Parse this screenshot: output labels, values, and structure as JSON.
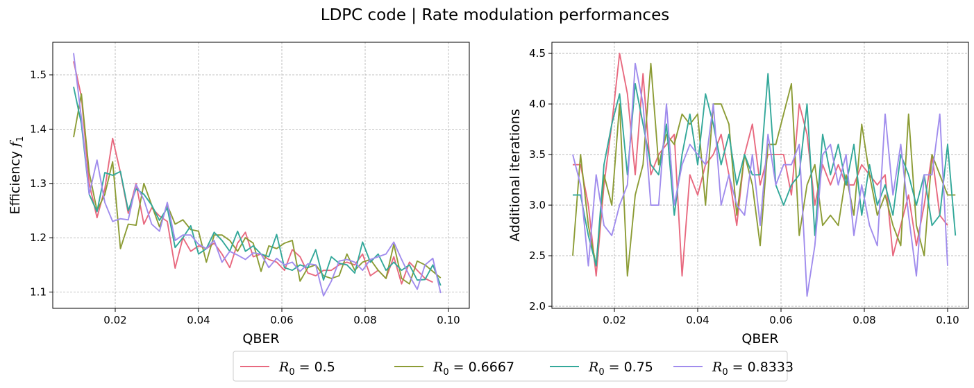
{
  "figure": {
    "title": "LDPC code | Rate modulation performances"
  },
  "legend": {
    "placement": "bottom-center",
    "entries": [
      {
        "prefix": "R",
        "sub": "0",
        "value": " = 0.5",
        "color": "#e8697f"
      },
      {
        "prefix": "R",
        "sub": "0",
        "value": " = 0.6667",
        "color": "#8c9c35"
      },
      {
        "prefix": "R",
        "sub": "0",
        "value": " = 0.75",
        "color": "#33a89a"
      },
      {
        "prefix": "R",
        "sub": "0",
        "value": " = 0.8333",
        "color": "#a08ced"
      }
    ]
  },
  "chart_data": [
    {
      "type": "line",
      "xlabel": "QBER",
      "ylabel_text": "Efficiency ",
      "ylabel_math": "f",
      "ylabel_sub": "1",
      "xlim": [
        0.005,
        0.105
      ],
      "ylim": [
        1.07,
        1.56
      ],
      "xticks": [
        0.02,
        0.04,
        0.06,
        0.08,
        0.1
      ],
      "xtick_labels": [
        "0.02",
        "0.04",
        "0.06",
        "0.08",
        "0.10"
      ],
      "yticks": [
        1.1,
        1.2,
        1.3,
        1.4,
        1.5
      ],
      "ytick_labels": [
        "1.1",
        "1.2",
        "1.3",
        "1.4",
        "1.5"
      ],
      "grid": true,
      "x_start": 0.01,
      "x_step": 0.001875,
      "series": [
        {
          "name": "R0 = 0.5",
          "color": "#e8697f",
          "values": [
            1.525,
            1.46,
            1.3,
            1.237,
            1.29,
            1.383,
            1.32,
            1.245,
            1.3,
            1.225,
            1.255,
            1.24,
            1.23,
            1.144,
            1.2,
            1.175,
            1.185,
            1.18,
            1.19,
            1.17,
            1.145,
            1.19,
            1.21,
            1.165,
            1.17,
            1.16,
            1.155,
            1.14,
            1.178,
            1.165,
            1.135,
            1.13,
            1.14,
            1.14,
            1.15,
            1.155,
            1.15,
            1.17,
            1.13,
            1.14,
            1.125,
            1.165,
            1.115,
            1.155,
            1.14,
            1.125,
            1.118
          ]
        },
        {
          "name": "R0 = 0.6667",
          "color": "#8c9c35",
          "values": [
            1.385,
            1.465,
            1.32,
            1.25,
            1.28,
            1.34,
            1.18,
            1.225,
            1.223,
            1.3,
            1.26,
            1.22,
            1.26,
            1.225,
            1.233,
            1.215,
            1.212,
            1.155,
            1.205,
            1.205,
            1.195,
            1.175,
            1.2,
            1.19,
            1.138,
            1.185,
            1.18,
            1.19,
            1.195,
            1.12,
            1.145,
            1.15,
            1.13,
            1.125,
            1.13,
            1.17,
            1.14,
            1.155,
            1.16,
            1.14,
            1.125,
            1.188,
            1.125,
            1.115,
            1.157,
            1.15,
            1.138,
            1.126
          ]
        },
        {
          "name": "R0 = 0.75",
          "color": "#33a89a",
          "values": [
            1.478,
            1.41,
            1.28,
            1.248,
            1.32,
            1.315,
            1.322,
            1.25,
            1.29,
            1.28,
            1.26,
            1.232,
            1.255,
            1.182,
            1.2,
            1.222,
            1.17,
            1.18,
            1.21,
            1.195,
            1.175,
            1.212,
            1.175,
            1.185,
            1.17,
            1.165,
            1.206,
            1.145,
            1.14,
            1.15,
            1.145,
            1.178,
            1.122,
            1.165,
            1.153,
            1.15,
            1.135,
            1.192,
            1.155,
            1.17,
            1.14,
            1.155,
            1.14,
            1.15,
            1.122,
            1.123,
            1.15,
            1.112
          ]
        },
        {
          "name": "R0 = 0.8333",
          "color": "#a08ced",
          "values": [
            1.54,
            1.42,
            1.28,
            1.343,
            1.265,
            1.23,
            1.235,
            1.233,
            1.298,
            1.27,
            1.225,
            1.212,
            1.265,
            1.195,
            1.205,
            1.205,
            1.188,
            1.18,
            1.195,
            1.155,
            1.175,
            1.168,
            1.16,
            1.172,
            1.17,
            1.145,
            1.162,
            1.15,
            1.155,
            1.138,
            1.152,
            1.15,
            1.093,
            1.12,
            1.157,
            1.16,
            1.155,
            1.14,
            1.16,
            1.165,
            1.17,
            1.192,
            1.16,
            1.13,
            1.105,
            1.15,
            1.162,
            1.098
          ]
        }
      ]
    },
    {
      "type": "line",
      "xlabel": "QBER",
      "ylabel_text": "Additional iterations",
      "ylabel_math": "",
      "ylabel_sub": "",
      "xlim": [
        0.005,
        0.105
      ],
      "ylim": [
        1.98,
        4.61
      ],
      "xticks": [
        0.02,
        0.04,
        0.06,
        0.08,
        0.1
      ],
      "xtick_labels": [
        "0.02",
        "0.04",
        "0.06",
        "0.08",
        "0.10"
      ],
      "yticks": [
        2.0,
        2.5,
        3.0,
        3.5,
        4.0,
        4.5
      ],
      "ytick_labels": [
        "2.0",
        "2.5",
        "3.0",
        "3.5",
        "4.0",
        "4.5"
      ],
      "grid": true,
      "x_start": 0.01,
      "x_step": 0.001875,
      "series": [
        {
          "name": "R0 = 0.5",
          "color": "#e8697f",
          "values": [
            3.4,
            3.4,
            3.0,
            2.3,
            3.2,
            3.8,
            4.5,
            4.1,
            3.3,
            4.3,
            3.3,
            3.5,
            3.6,
            3.7,
            2.3,
            3.3,
            3.1,
            3.4,
            3.5,
            3.7,
            3.3,
            2.8,
            3.5,
            3.8,
            3.2,
            3.5,
            3.5,
            3.5,
            3.1,
            4.0,
            3.7,
            3.0,
            3.4,
            3.2,
            3.4,
            3.2,
            3.2,
            3.4,
            3.3,
            3.2,
            3.3,
            2.5,
            2.8,
            3.1,
            2.6,
            3.0,
            3.5,
            2.9,
            2.8
          ]
        },
        {
          "name": "R0 = 0.6667",
          "color": "#8c9c35",
          "values": [
            2.5,
            3.5,
            2.8,
            2.4,
            3.3,
            3.0,
            4.0,
            2.3,
            3.1,
            3.4,
            4.4,
            3.4,
            3.7,
            3.6,
            3.9,
            3.8,
            3.9,
            3.0,
            4.0,
            4.0,
            3.8,
            2.9,
            3.5,
            3.2,
            2.6,
            3.6,
            3.6,
            3.9,
            4.2,
            2.7,
            3.2,
            3.4,
            2.8,
            2.9,
            2.8,
            3.3,
            2.9,
            3.8,
            3.3,
            2.9,
            3.1,
            2.8,
            2.6,
            3.9,
            2.8,
            2.5,
            3.5,
            3.3,
            3.1,
            3.1
          ]
        },
        {
          "name": "R0 = 0.75",
          "color": "#33a89a",
          "values": [
            3.1,
            3.1,
            2.7,
            2.4,
            3.4,
            3.8,
            4.1,
            3.3,
            4.2,
            3.8,
            3.4,
            3.3,
            3.8,
            2.9,
            3.5,
            3.9,
            3.4,
            4.1,
            3.8,
            3.4,
            3.7,
            3.2,
            3.5,
            3.3,
            3.3,
            4.3,
            3.2,
            3.0,
            3.2,
            3.3,
            4.0,
            2.7,
            3.7,
            3.3,
            3.6,
            3.2,
            3.6,
            2.9,
            3.4,
            3.0,
            3.2,
            2.9,
            3.5,
            3.3,
            3.0,
            3.3,
            2.8,
            2.9,
            3.6,
            2.7
          ]
        },
        {
          "name": "R0 = 0.8333",
          "color": "#a08ced",
          "values": [
            3.5,
            3.2,
            2.4,
            3.3,
            2.8,
            2.7,
            3.0,
            3.2,
            4.4,
            4.0,
            3.0,
            3.0,
            4.0,
            3.0,
            3.4,
            3.6,
            3.5,
            3.4,
            4.0,
            3.0,
            3.3,
            3.0,
            2.9,
            3.5,
            2.8,
            3.7,
            3.2,
            3.4,
            3.4,
            3.6,
            2.1,
            2.6,
            3.5,
            3.6,
            3.2,
            3.5,
            2.7,
            3.2,
            2.8,
            2.6,
            3.9,
            3.1,
            3.6,
            2.9,
            2.3,
            3.3,
            3.3,
            3.9,
            2.4
          ]
        }
      ]
    }
  ]
}
